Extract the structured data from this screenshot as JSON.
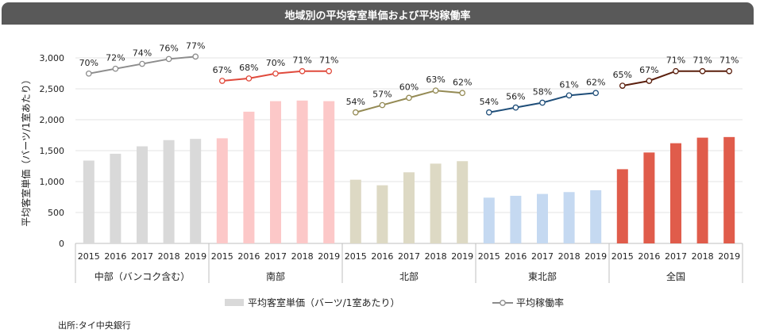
{
  "title": "地域別の平均客室単価および平均稼働率",
  "source": "出所:タイ中央銀行",
  "chart_data": {
    "type": "bar",
    "ylabel": "平均客室単価（バーツ/1室あたり）",
    "ylim": [
      0,
      3000
    ],
    "yticks": [
      "0",
      "500",
      "1,000",
      "1,500",
      "2,000",
      "2,500",
      "3,000"
    ],
    "ytick_values": [
      0,
      500,
      1000,
      1500,
      2000,
      2500,
      3000
    ],
    "years": [
      "2015",
      "2016",
      "2017",
      "2018",
      "2019"
    ],
    "legend": {
      "bar": "平均客室単価（バーツ/1室あたり）",
      "line": "平均稼働率"
    },
    "groups": [
      {
        "name": "中部（バンコク含む）",
        "bar_values": [
          1340,
          1450,
          1570,
          1670,
          1690
        ],
        "occupancy_labels": [
          "70%",
          "72%",
          "74%",
          "76%",
          "77%"
        ],
        "occupancy": [
          70,
          72,
          74,
          76,
          77
        ],
        "bar_color": "#d9d9d9",
        "line_color": "#8c8c8c"
      },
      {
        "name": "南部",
        "bar_values": [
          1700,
          2130,
          2300,
          2310,
          2300
        ],
        "occupancy_labels": [
          "67%",
          "68%",
          "70%",
          "71%",
          "71%"
        ],
        "occupancy": [
          67,
          68,
          70,
          71,
          71
        ],
        "bar_color": "#fcc8c8",
        "line_color": "#e04a3c"
      },
      {
        "name": "北部",
        "bar_values": [
          1030,
          940,
          1150,
          1290,
          1330
        ],
        "occupancy_labels": [
          "54%",
          "57%",
          "60%",
          "63%",
          "62%"
        ],
        "occupancy": [
          54,
          57,
          60,
          63,
          62
        ],
        "bar_color": "#ddd9c4",
        "line_color": "#948a54"
      },
      {
        "name": "東北部",
        "bar_values": [
          740,
          770,
          800,
          830,
          860
        ],
        "occupancy_labels": [
          "54%",
          "56%",
          "58%",
          "61%",
          "62%"
        ],
        "occupancy": [
          54,
          56,
          58,
          61,
          62
        ],
        "bar_color": "#c5d9f1",
        "line_color": "#1f4e79"
      },
      {
        "name": "全国",
        "bar_values": [
          1200,
          1470,
          1620,
          1710,
          1720
        ],
        "occupancy_labels": [
          "65%",
          "67%",
          "71%",
          "71%",
          "71%"
        ],
        "occupancy": [
          65,
          67,
          71,
          71,
          71
        ],
        "bar_color": "#e05c4b",
        "line_color": "#5a1e0c"
      }
    ]
  }
}
